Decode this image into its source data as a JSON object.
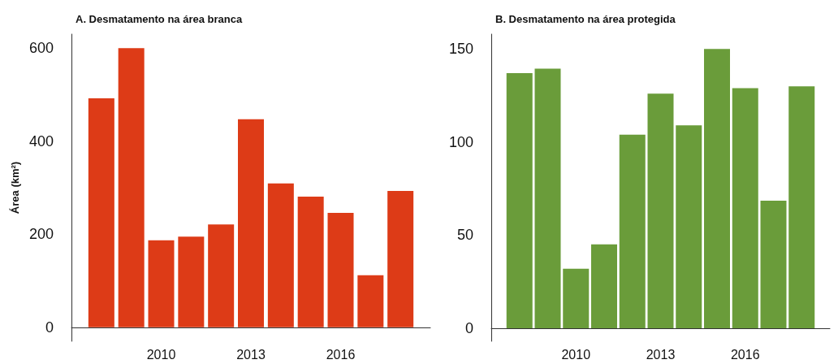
{
  "chart_data": [
    {
      "type": "bar",
      "title": "A. Desmatamento na área branca",
      "ylabel": "Área (km²)",
      "x": [
        2008,
        2009,
        2010,
        2011,
        2012,
        2013,
        2014,
        2015,
        2016,
        2017,
        2018
      ],
      "values": [
        492,
        600,
        187,
        195,
        221,
        447,
        309,
        281,
        246,
        112,
        293
      ],
      "color": "#dd3b17",
      "xlim": [
        2007,
        2019
      ],
      "xticks": [
        2010,
        2013,
        2016
      ],
      "ylim": [
        -30,
        630
      ],
      "yticks": [
        0,
        200,
        400,
        600
      ]
    },
    {
      "type": "bar",
      "title": "B. Desmatamento na área protegida",
      "x": [
        2008,
        2009,
        2010,
        2011,
        2012,
        2013,
        2014,
        2015,
        2016,
        2017,
        2018
      ],
      "values": [
        137,
        139.5,
        32,
        45,
        104,
        126,
        109,
        150,
        129,
        68.5,
        130
      ],
      "color": "#6a9c3a",
      "xlim": [
        2007,
        2019
      ],
      "xticks": [
        2010,
        2013,
        2016
      ],
      "ylim": [
        -7,
        158
      ],
      "yticks": [
        0,
        50,
        100,
        150
      ]
    }
  ]
}
